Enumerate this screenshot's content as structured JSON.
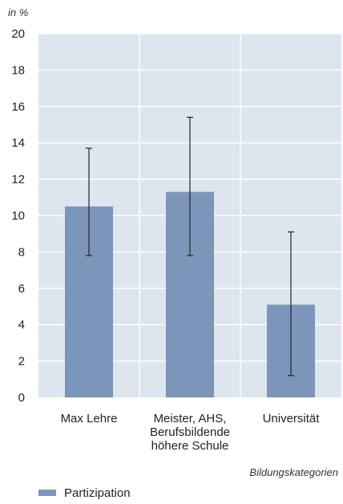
{
  "chart_data": {
    "type": "bar",
    "ylabel": "in %",
    "xlabel": "Bildungskategorien",
    "ylim": [
      0,
      20
    ],
    "yticks": [
      0,
      2,
      4,
      6,
      8,
      10,
      12,
      14,
      16,
      18,
      20
    ],
    "categories": [
      [
        "Max Lehre"
      ],
      [
        "Meister, AHS,",
        "Berufsbildende",
        "höhere Schule"
      ],
      [
        "Universität"
      ]
    ],
    "series": [
      {
        "name": "Partizipation",
        "values": [
          10.5,
          11.3,
          5.1
        ],
        "error_low": [
          7.8,
          7.8,
          1.2
        ],
        "error_high": [
          13.7,
          15.4,
          9.1
        ]
      }
    ],
    "colors": {
      "bar": "#7b96b8",
      "panel": "#dde5ee",
      "grid": "#ffffff",
      "error": "#222222"
    },
    "grid": true,
    "legend_position": "bottom-left"
  }
}
